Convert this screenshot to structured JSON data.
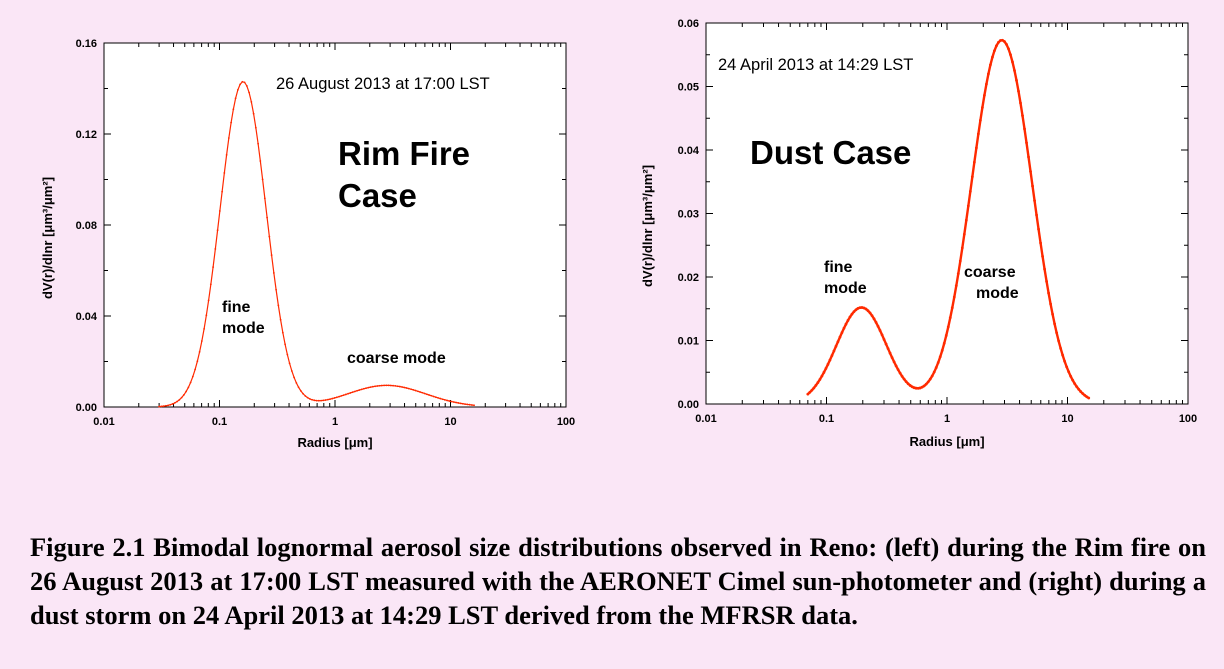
{
  "figure": {
    "caption": "Figure 2.1 Bimodal lognormal aerosol size distributions observed in Reno: (left) during the Rim fire on 26 August 2013 at 17:00 LST measured with the AERONET Cimel sun-photometer and (right) during a dust storm on 24 April 2013 at 14:29 LST derived from the MFRSR data."
  },
  "chart_data": [
    {
      "type": "line",
      "xscale": "log",
      "xlim": [
        0.01,
        100
      ],
      "ylim": [
        0,
        0.16
      ],
      "xticks": [
        "0.01",
        "0.1",
        "1",
        "10",
        "100"
      ],
      "yticks": [
        "0.00",
        "0.04",
        "0.08",
        "0.12",
        "0.16"
      ],
      "xlabel": "Radius [μm]",
      "ylabel": "dV(r)/dlnr [μm³/μm²]",
      "series_color": "#ff2a00",
      "annotations": {
        "date": "26 August 2013 at 17:00 LST",
        "case": [
          "Rim Fire",
          "Case"
        ],
        "fine": [
          "fine",
          "mode"
        ],
        "coarse": [
          "coarse mode"
        ]
      },
      "modes": [
        {
          "name": "fine mode",
          "peak_radius": 0.16,
          "peak_value": 0.143,
          "sigma_ln": 0.46
        },
        {
          "name": "coarse mode",
          "peak_radius": 2.8,
          "peak_value": 0.0095,
          "sigma_ln": 0.78
        }
      ],
      "x_range": [
        0.03,
        16
      ]
    },
    {
      "type": "line",
      "xscale": "log",
      "xlim": [
        0.01,
        100
      ],
      "ylim": [
        0,
        0.06
      ],
      "xticks": [
        "0.01",
        "0.1",
        "1",
        "10",
        "100"
      ],
      "yticks": [
        "0.00",
        "0.01",
        "0.02",
        "0.03",
        "0.04",
        "0.05",
        "0.06"
      ],
      "xlabel": "Radius [μm]",
      "ylabel": "dV(r)/dlnr [μm³/μm²]",
      "series_color": "#ff2a00",
      "annotations": {
        "date": "24 April 2013 at 14:29 LST",
        "case": [
          "Dust Case"
        ],
        "fine": [
          "fine",
          "mode"
        ],
        "coarse": [
          "coarse",
          "mode"
        ]
      },
      "modes": [
        {
          "name": "fine mode",
          "peak_radius": 0.195,
          "peak_value": 0.0152,
          "sigma_ln": 0.48
        },
        {
          "name": "coarse mode",
          "peak_radius": 2.85,
          "peak_value": 0.0573,
          "sigma_ln": 0.58
        }
      ],
      "x_range": [
        0.07,
        15
      ]
    }
  ]
}
